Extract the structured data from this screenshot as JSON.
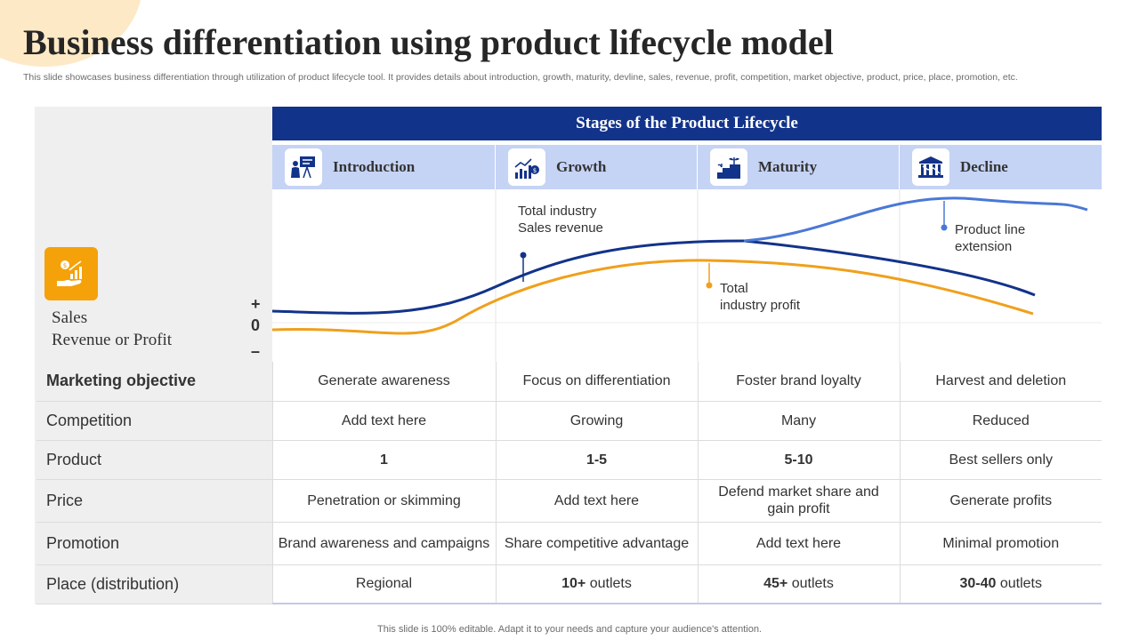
{
  "slide": {
    "title": "Business differentiation using product lifecycle model",
    "subtitle": "This slide showcases business differentiation through utilization of product lifecycle tool. It provides details about introduction, growth, maturity, devline, sales, revenue, profit, competition, market objective, product, price, place, promotion, etc.",
    "footer": "This slide is 100% editable. Adapt it to your needs and capture your audience's attention."
  },
  "colors": {
    "header_blue": "#12338a",
    "stage_band": "#c5d3f5",
    "revenue_line": "#12338a",
    "profit_line": "#f0a01c",
    "extension_line": "#4a78d6",
    "icon_orange": "#f5a10a"
  },
  "lifecycle": {
    "header": "Stages of the Product Lifecycle",
    "stages": [
      {
        "name": "Introduction",
        "icon": "presentation-icon"
      },
      {
        "name": "Growth",
        "icon": "growth-chart-icon"
      },
      {
        "name": "Maturity",
        "icon": "plant-steps-icon"
      },
      {
        "name": "Decline",
        "icon": "bank-decline-icon"
      }
    ]
  },
  "chart": {
    "y_label": "Sales\nRevenue or Profit",
    "y_icon": "money-hand-icon",
    "plus": "+",
    "zero": "0",
    "minus": "–",
    "annotations": {
      "revenue": "Total industry\nSales revenue",
      "profit": "Total\nindustry profit",
      "extension": "Product line\nextension"
    }
  },
  "table": {
    "rows": [
      {
        "label": "Marketing objective",
        "cells": [
          "Generate awareness",
          "Focus on differentiation",
          "Foster brand loyalty",
          "Harvest and deletion"
        ]
      },
      {
        "label": "Competition",
        "cells": [
          "Add text here",
          "Growing",
          "Many",
          "Reduced"
        ]
      },
      {
        "label": "Product",
        "cells": [
          "1",
          "1-5",
          "5-10",
          "Best sellers only"
        ]
      },
      {
        "label": "Price",
        "cells": [
          "Penetration or skimming",
          "Add text here",
          "Defend market share and gain profit",
          "Generate profits"
        ]
      },
      {
        "label": "Promotion",
        "cells": [
          "Brand awareness and campaigns",
          "Share competitive advantage",
          "Add text here",
          "Minimal promotion"
        ]
      },
      {
        "label": "Place (distribution)",
        "cells": [
          "Regional",
          "10+ outlets",
          "45+ outlets",
          "30-40 outlets"
        ]
      }
    ]
  }
}
